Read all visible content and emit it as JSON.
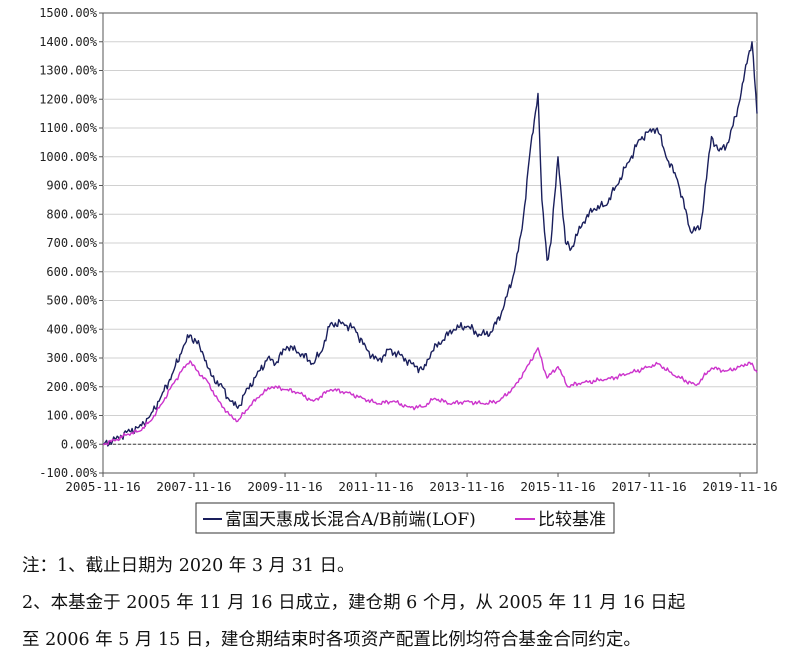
{
  "chart_data": {
    "type": "line",
    "title": "",
    "xlabel": "",
    "ylabel": "",
    "x_ticks": [
      "2005-11-16",
      "2007-11-16",
      "2009-11-16",
      "2011-11-16",
      "2013-11-16",
      "2015-11-16",
      "2017-11-16",
      "2019-11-16"
    ],
    "y_ticks": [
      "-100.00%",
      "0.00%",
      "100.00%",
      "200.00%",
      "300.00%",
      "400.00%",
      "500.00%",
      "600.00%",
      "700.00%",
      "800.00%",
      "900.00%",
      "1000.00%",
      "1100.00%",
      "1200.00%",
      "1300.00%",
      "1400.00%",
      "1500.00%"
    ],
    "xlim": [
      "2005-11-16",
      "2020-03-31"
    ],
    "ylim": [
      -100,
      1500
    ],
    "grid": "horizontal",
    "legend_position": "bottom",
    "series": [
      {
        "name": "富国天惠成长混合A/B前端(LOF)",
        "color": "#1a1f5c",
        "points": [
          [
            "2005-11-16",
            0
          ],
          [
            "2006-03-01",
            20
          ],
          [
            "2006-06-01",
            45
          ],
          [
            "2006-09-01",
            60
          ],
          [
            "2006-12-01",
            100
          ],
          [
            "2007-03-01",
            170
          ],
          [
            "2007-06-01",
            250
          ],
          [
            "2007-08-15",
            330
          ],
          [
            "2007-10-16",
            380
          ],
          [
            "2007-12-01",
            360
          ],
          [
            "2008-02-01",
            310
          ],
          [
            "2008-04-01",
            240
          ],
          [
            "2008-07-01",
            200
          ],
          [
            "2008-09-01",
            150
          ],
          [
            "2008-11-01",
            125
          ],
          [
            "2009-01-01",
            180
          ],
          [
            "2009-04-01",
            240
          ],
          [
            "2009-07-01",
            300
          ],
          [
            "2009-09-01",
            280
          ],
          [
            "2009-12-01",
            340
          ],
          [
            "2010-03-01",
            320
          ],
          [
            "2010-07-01",
            280
          ],
          [
            "2010-09-01",
            320
          ],
          [
            "2010-11-16",
            420
          ],
          [
            "2011-03-01",
            420
          ],
          [
            "2011-06-01",
            400
          ],
          [
            "2011-09-01",
            330
          ],
          [
            "2011-12-01",
            290
          ],
          [
            "2012-03-01",
            330
          ],
          [
            "2012-06-01",
            310
          ],
          [
            "2012-09-01",
            280
          ],
          [
            "2012-12-01",
            260
          ],
          [
            "2013-02-01",
            320
          ],
          [
            "2013-05-01",
            360
          ],
          [
            "2013-08-01",
            400
          ],
          [
            "2013-11-16",
            410
          ],
          [
            "2014-03-01",
            380
          ],
          [
            "2014-06-01",
            390
          ],
          [
            "2014-09-01",
            470
          ],
          [
            "2014-12-01",
            600
          ],
          [
            "2015-02-01",
            750
          ],
          [
            "2015-04-01",
            1000
          ],
          [
            "2015-06-08",
            1220
          ],
          [
            "2015-07-10",
            850
          ],
          [
            "2015-08-20",
            640
          ],
          [
            "2015-09-20",
            700
          ],
          [
            "2015-11-16",
            1000
          ],
          [
            "2016-01-15",
            700
          ],
          [
            "2016-03-01",
            680
          ],
          [
            "2016-06-01",
            770
          ],
          [
            "2016-09-01",
            820
          ],
          [
            "2016-12-01",
            830
          ],
          [
            "2017-03-01",
            900
          ],
          [
            "2017-06-01",
            980
          ],
          [
            "2017-09-01",
            1060
          ],
          [
            "2017-11-16",
            1090
          ],
          [
            "2018-01-20",
            1100
          ],
          [
            "2018-04-01",
            1000
          ],
          [
            "2018-07-01",
            920
          ],
          [
            "2018-10-15",
            740
          ],
          [
            "2019-01-01",
            750
          ],
          [
            "2019-04-01",
            1070
          ],
          [
            "2019-06-01",
            1020
          ],
          [
            "2019-08-15",
            1050
          ],
          [
            "2019-11-16",
            1200
          ],
          [
            "2020-01-20",
            1350
          ],
          [
            "2020-02-20",
            1400
          ],
          [
            "2020-03-31",
            1150
          ]
        ]
      },
      {
        "name": "比较基准",
        "color": "#cc33cc",
        "points": [
          [
            "2005-11-16",
            0
          ],
          [
            "2006-03-01",
            15
          ],
          [
            "2006-06-01",
            35
          ],
          [
            "2006-09-01",
            45
          ],
          [
            "2006-12-01",
            80
          ],
          [
            "2007-03-01",
            140
          ],
          [
            "2007-06-01",
            210
          ],
          [
            "2007-08-15",
            260
          ],
          [
            "2007-10-16",
            290
          ],
          [
            "2007-12-01",
            260
          ],
          [
            "2008-03-01",
            220
          ],
          [
            "2008-06-01",
            150
          ],
          [
            "2008-09-01",
            100
          ],
          [
            "2008-11-01",
            80
          ],
          [
            "2009-02-01",
            130
          ],
          [
            "2009-05-01",
            170
          ],
          [
            "2009-08-01",
            200
          ],
          [
            "2009-11-16",
            190
          ],
          [
            "2010-03-01",
            180
          ],
          [
            "2010-07-01",
            150
          ],
          [
            "2010-11-16",
            190
          ],
          [
            "2011-04-01",
            180
          ],
          [
            "2011-08-01",
            160
          ],
          [
            "2011-12-01",
            140
          ],
          [
            "2012-04-01",
            150
          ],
          [
            "2012-08-01",
            130
          ],
          [
            "2012-12-01",
            130
          ],
          [
            "2013-03-01",
            160
          ],
          [
            "2013-07-01",
            140
          ],
          [
            "2013-11-16",
            150
          ],
          [
            "2014-04-01",
            140
          ],
          [
            "2014-08-01",
            150
          ],
          [
            "2014-12-01",
            200
          ],
          [
            "2015-03-01",
            260
          ],
          [
            "2015-06-08",
            335
          ],
          [
            "2015-08-20",
            230
          ],
          [
            "2015-11-16",
            270
          ],
          [
            "2016-02-01",
            200
          ],
          [
            "2016-06-01",
            215
          ],
          [
            "2016-12-01",
            225
          ],
          [
            "2017-06-01",
            245
          ],
          [
            "2017-11-16",
            270
          ],
          [
            "2018-02-01",
            280
          ],
          [
            "2018-06-01",
            240
          ],
          [
            "2018-12-01",
            205
          ],
          [
            "2019-04-01",
            265
          ],
          [
            "2019-08-01",
            255
          ],
          [
            "2019-11-16",
            270
          ],
          [
            "2020-02-01",
            285
          ],
          [
            "2020-03-31",
            250
          ]
        ]
      }
    ]
  },
  "legend": {
    "fund": "富国天惠成长混合A/B前端(LOF)",
    "benchmark": "比较基准"
  },
  "notes": {
    "line1": "注：1、截止日期为 2020 年 3 月 31 日。",
    "line2": "2、本基金于 2005 年 11 月 16 日成立，建仓期 6 个月，从 2005 年 11 月 16 日起",
    "line3": "至 2006 年 5 月 15 日，建仓期结束时各项资产配置比例均符合基金合同约定。"
  }
}
